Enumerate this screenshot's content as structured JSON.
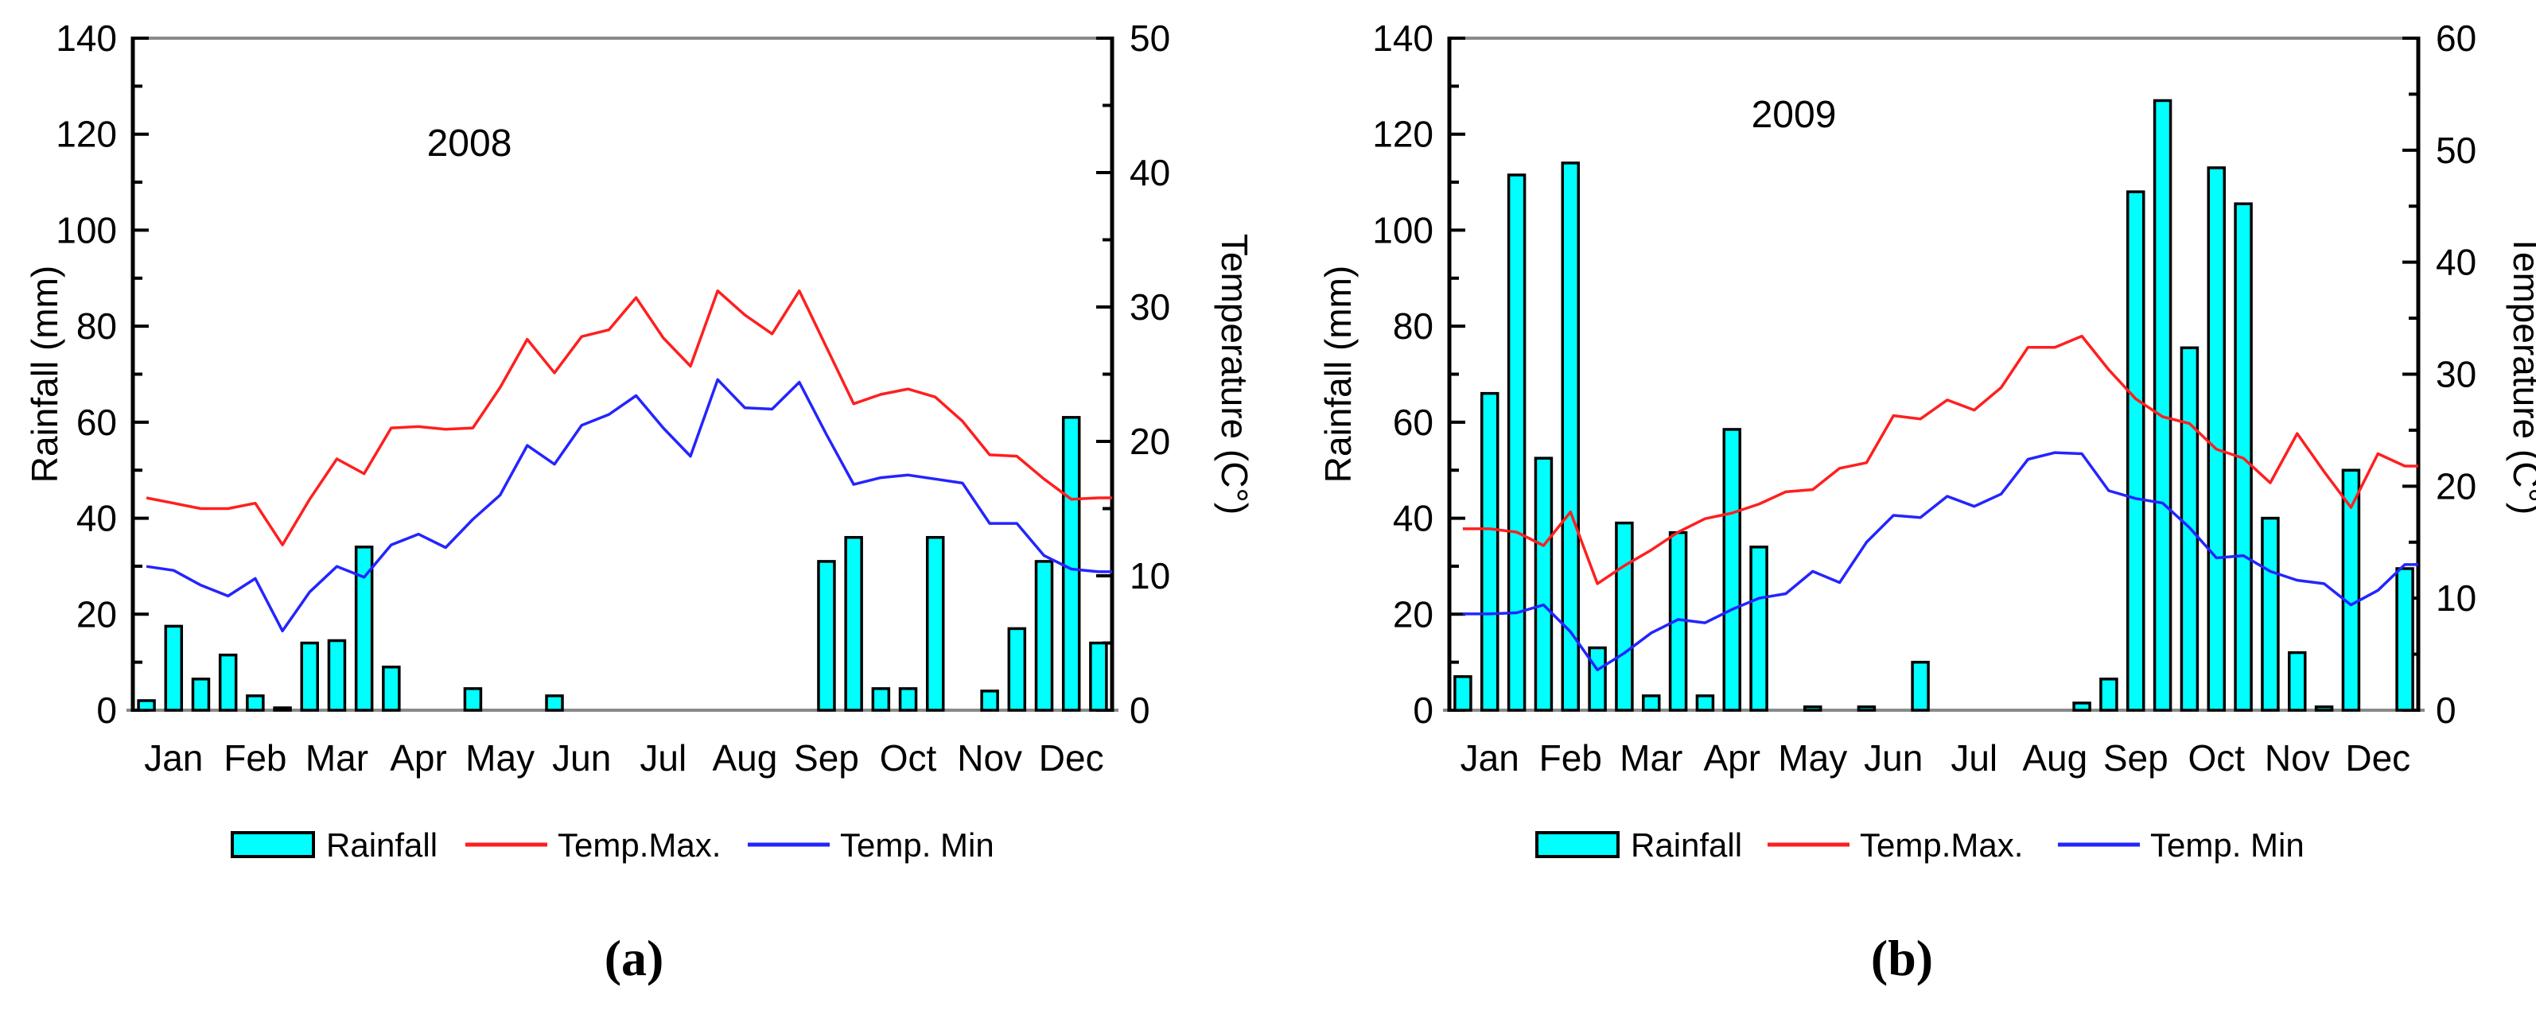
{
  "figure_type": "dual-panel rainfall and temperature climate chart",
  "chart_data": [
    {
      "type": "combo-bar-line",
      "title": "2008",
      "caption": "(a)",
      "x_months": [
        "Jan",
        "Feb",
        "Mar",
        "Apr",
        "May",
        "Jun",
        "Jul",
        "Aug",
        "Sep",
        "Oct",
        "Nov",
        "Dec"
      ],
      "periods_per_month": 3,
      "left_axis": {
        "label": "Rainfall  (mm)",
        "min": 0,
        "max": 140,
        "major_step": 20,
        "minor_step": 10
      },
      "right_axis": {
        "label": "Temperature  (C°)",
        "min": 0,
        "max": 50,
        "major_step": 10,
        "minor_step": 5
      },
      "series": [
        {
          "name": "Rainfall",
          "type": "bar",
          "axis": "left",
          "values": [
            2,
            17.5,
            6.5,
            11.5,
            3,
            0.5,
            14,
            14.5,
            34,
            9,
            0,
            0,
            4.5,
            0,
            0,
            3,
            0,
            0,
            0,
            0,
            0,
            0,
            0,
            0,
            0,
            31,
            36,
            4.5,
            4.5,
            36,
            0,
            4,
            17,
            31,
            61,
            14
          ]
        },
        {
          "name": "Temp.Max.",
          "type": "line",
          "axis": "right",
          "values": [
            15.8,
            15.4,
            15.0,
            15.0,
            15.4,
            12.3,
            15.7,
            18.7,
            17.6,
            21.0,
            21.1,
            20.9,
            21.0,
            24.0,
            27.6,
            25.1,
            27.8,
            28.3,
            30.7,
            27.7,
            25.6,
            31.2,
            29.4,
            28.0,
            31.2,
            27.0,
            22.8,
            23.5,
            23.9,
            23.3,
            21.5,
            19.0,
            18.9,
            17.2,
            15.7,
            15.8
          ]
        },
        {
          "name": "Temp. Min",
          "type": "line",
          "axis": "right",
          "values": [
            10.7,
            10.4,
            9.3,
            8.5,
            9.8,
            5.9,
            8.8,
            10.7,
            9.9,
            12.3,
            13.1,
            12.1,
            14.2,
            16.0,
            19.7,
            18.3,
            21.2,
            22.0,
            23.4,
            21.0,
            18.9,
            24.6,
            22.5,
            22.4,
            24.4,
            20.5,
            16.8,
            17.3,
            17.5,
            17.2,
            16.9,
            13.9,
            13.9,
            11.5,
            10.5,
            10.3
          ]
        }
      ],
      "legend": [
        {
          "label": "Rainfall",
          "swatch": "bar"
        },
        {
          "label": "Temp.Max.",
          "swatch": "line-red"
        },
        {
          "label": "Temp. Min",
          "swatch": "line-blue"
        }
      ]
    },
    {
      "type": "combo-bar-line",
      "title": "2009",
      "caption": "(b)",
      "x_months": [
        "Jan",
        "Feb",
        "Mar",
        "Apr",
        "May",
        "Jun",
        "Jul",
        "Aug",
        "Sep",
        "Oct",
        "Nov",
        "Dec"
      ],
      "periods_per_month": 3,
      "left_axis": {
        "label": "Rainfall  (mm)",
        "min": 0,
        "max": 140,
        "major_step": 20,
        "minor_step": 10
      },
      "right_axis": {
        "label": "Temperature  (C°)",
        "min": 0,
        "max": 60,
        "major_step": 10,
        "minor_step": 5
      },
      "series": [
        {
          "name": "Rainfall",
          "type": "bar",
          "axis": "left",
          "values": [
            7,
            66,
            111.5,
            52.5,
            114,
            13,
            39,
            3,
            37,
            3,
            58.5,
            34,
            0,
            0.7,
            0,
            0.7,
            0,
            10,
            0,
            0,
            0,
            0,
            0,
            1.5,
            6.5,
            108,
            127,
            75.5,
            113,
            105.5,
            40,
            12,
            0.7,
            50,
            0,
            29.5
          ]
        },
        {
          "name": "Temp.Max.",
          "type": "line",
          "axis": "right",
          "values": [
            16.2,
            16.2,
            15.9,
            14.7,
            17.7,
            11.3,
            12.9,
            14.3,
            15.9,
            17.1,
            17.6,
            18.4,
            19.5,
            19.7,
            21.6,
            22.1,
            26.3,
            26.0,
            27.7,
            26.8,
            28.8,
            32.4,
            32.4,
            33.4,
            30.4,
            27.8,
            26.2,
            25.6,
            23.3,
            22.5,
            20.3,
            24.7,
            21.3,
            18.1,
            22.9,
            21.8
          ]
        },
        {
          "name": "Temp. Min",
          "type": "line",
          "axis": "right",
          "values": [
            8.6,
            8.6,
            8.7,
            9.4,
            7.0,
            3.6,
            5.1,
            6.9,
            8.1,
            7.8,
            9.0,
            10.0,
            10.4,
            12.4,
            11.4,
            15.0,
            17.4,
            17.2,
            19.1,
            18.2,
            19.3,
            22.4,
            23.0,
            22.9,
            19.6,
            18.9,
            18.5,
            16.3,
            13.6,
            13.8,
            12.4,
            11.6,
            11.3,
            9.4,
            10.7,
            13.0
          ]
        }
      ],
      "legend": [
        {
          "label": "Rainfall",
          "swatch": "bar"
        },
        {
          "label": "Temp.Max.",
          "swatch": "line-red"
        },
        {
          "label": "Temp. Min",
          "swatch": "line-blue"
        }
      ]
    }
  ],
  "colors": {
    "bar_fill": "#00ffff",
    "bar_stroke": "#000000",
    "temp_max_line": "#ff1f1f",
    "temp_min_line": "#2424ff",
    "frame_gray": "#8a8a8a",
    "axis_black": "#000000",
    "text": "#000000"
  }
}
